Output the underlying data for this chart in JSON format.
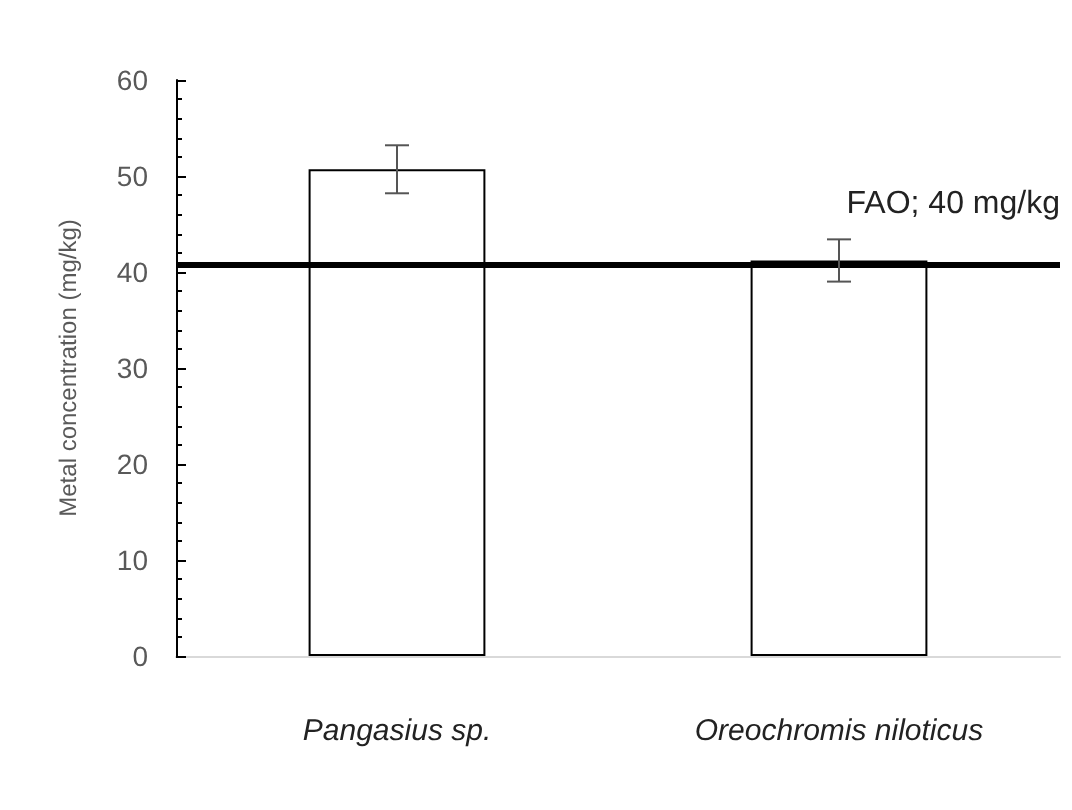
{
  "chart_data": {
    "type": "bar",
    "ylabel": "Metal concentration (mg/kg)",
    "categories": [
      "Pangasius sp.",
      "Oreochromis niloticus"
    ],
    "values": [
      50.7,
      41.2
    ],
    "errors": [
      2.5,
      2.2
    ],
    "color": "#ffffff",
    "ylim": [
      0,
      60
    ],
    "yticks": [
      0,
      10,
      20,
      30,
      40,
      50,
      60
    ],
    "grid": false,
    "ref_lines": [
      {
        "axis": "y",
        "value": 40.8,
        "label": "FAO; 40 mg/kg",
        "color": "#000000"
      }
    ]
  }
}
